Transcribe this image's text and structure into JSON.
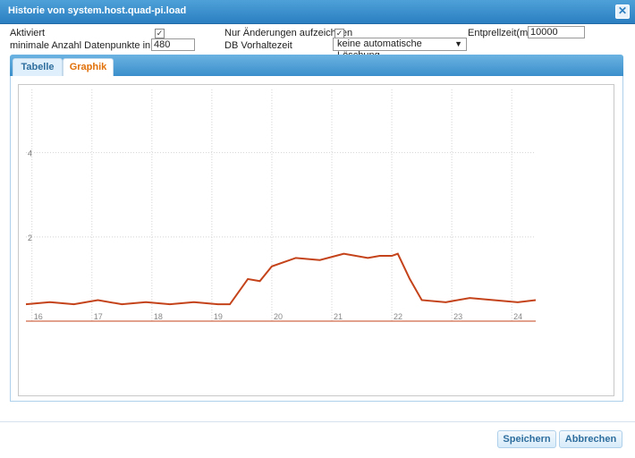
{
  "dialog": {
    "title": "Historie von system.host.quad-pi.load",
    "close_icon": "close-icon"
  },
  "settings": {
    "enabled_label": "Aktiviert",
    "enabled_checked": true,
    "changes_only_label": "Nur Änderungen aufzeichnen",
    "changes_only_checked": true,
    "debounce_label": "Entprellzeit(ms)",
    "debounce_value": "10000",
    "min_points_label": "minimale Anzahl Datenpunkte in Redis",
    "min_points_value": "480",
    "retention_label": "DB Vorhaltezeit",
    "retention_value": "keine automatische Löschung"
  },
  "tabs": [
    {
      "label": "Tabelle",
      "active": false
    },
    {
      "label": "Graphik",
      "active": true
    }
  ],
  "chart_data": {
    "type": "line",
    "series": [
      {
        "color": "#c4431a",
        "x": [
          15.9,
          16.3,
          16.7,
          17.1,
          17.5,
          17.9,
          18.3,
          18.7,
          19.1,
          19.3,
          19.6,
          19.8,
          20.0,
          20.4,
          20.8,
          21.2,
          21.6,
          21.8,
          22.0,
          22.1,
          22.3,
          22.5,
          22.9,
          23.3,
          23.7,
          24.1,
          24.4
        ],
        "y": [
          0.4,
          0.45,
          0.4,
          0.5,
          0.4,
          0.45,
          0.4,
          0.45,
          0.4,
          0.4,
          1.0,
          0.95,
          1.3,
          1.5,
          1.45,
          1.6,
          1.5,
          1.55,
          1.55,
          1.6,
          1.0,
          0.5,
          0.45,
          0.55,
          0.5,
          0.45,
          0.5
        ]
      }
    ],
    "x_ticks": [
      "16",
      "17",
      "18",
      "19",
      "20",
      "21",
      "22",
      "23",
      "24"
    ],
    "y_ticks": [
      "2",
      "4"
    ],
    "xlim": [
      15.9,
      24.4
    ],
    "ylim": [
      0,
      5.5
    ],
    "grid": true
  },
  "buttons": {
    "save_label": "Speichern",
    "cancel_label": "Abbrechen"
  }
}
